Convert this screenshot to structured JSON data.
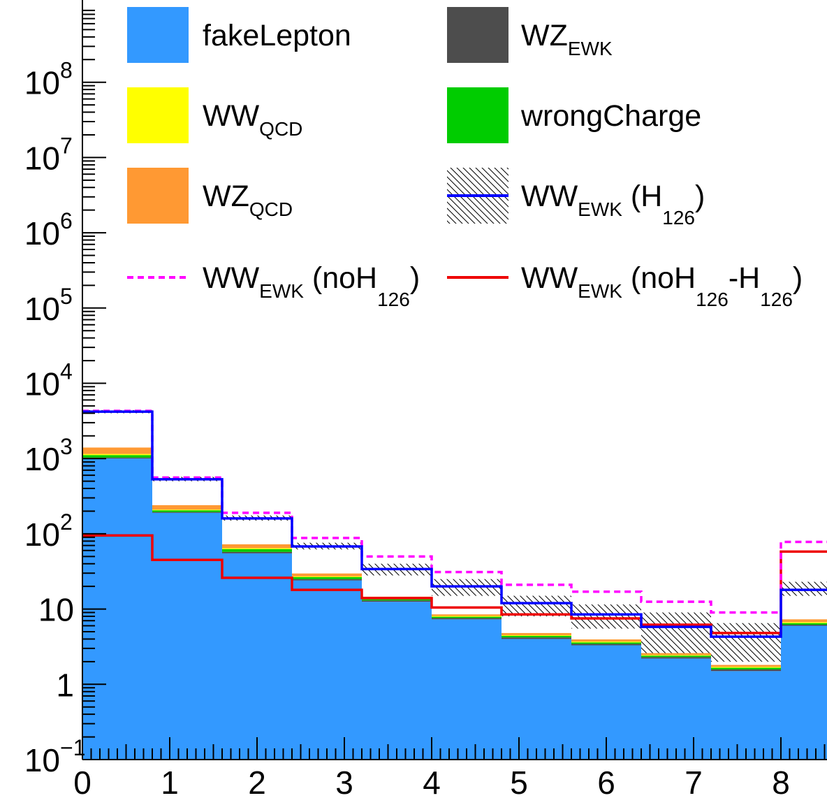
{
  "chart_data": {
    "type": "bar",
    "title": "",
    "xlabel": "",
    "ylabel": "",
    "y_scale": "log",
    "ylim": [
      0.1,
      1000000000
    ],
    "xlim": [
      0,
      8.5
    ],
    "bin_edges": [
      0,
      0.8,
      1.6,
      2.4,
      3.2,
      4.0,
      4.8,
      5.6,
      6.4,
      7.2,
      8.0,
      8.8
    ],
    "x_tick_labels": [
      "0",
      "1",
      "2",
      "3",
      "4",
      "5",
      "6",
      "7",
      "8"
    ],
    "y_tick_labels": [
      {
        "base": "10",
        "exp": "−1"
      },
      {
        "base": "1",
        "exp": ""
      },
      {
        "base": "10",
        "exp": ""
      },
      {
        "base": "10",
        "exp": "2"
      },
      {
        "base": "10",
        "exp": "3"
      },
      {
        "base": "10",
        "exp": "4"
      },
      {
        "base": "10",
        "exp": "5"
      },
      {
        "base": "10",
        "exp": "6"
      },
      {
        "base": "10",
        "exp": "7"
      },
      {
        "base": "10",
        "exp": "8"
      }
    ],
    "stack": [
      {
        "name": "fakeLepton",
        "color": "#3399ff",
        "values": [
          1000,
          190,
          55,
          24,
          12.5,
          7.3,
          4.0,
          3.3,
          2.2,
          1.5,
          6.0
        ]
      },
      {
        "name": "WZ_EWK",
        "color": "#4d4d4d",
        "values": [
          30,
          5,
          2.5,
          1.0,
          0.5,
          0.3,
          0.2,
          0.15,
          0.1,
          0.08,
          0.2
        ]
      },
      {
        "name": "wrongCharge",
        "color": "#00cc00",
        "values": [
          80,
          10,
          5,
          1.5,
          0.5,
          0.3,
          0.2,
          0.15,
          0.1,
          0.08,
          0.3
        ]
      },
      {
        "name": "WW_QCD",
        "color": "#ffff00",
        "values": [
          40,
          5,
          2,
          0.7,
          0.3,
          0.2,
          0.1,
          0.1,
          0.05,
          0.05,
          0.2
        ]
      },
      {
        "name": "WZ_QCD",
        "color": "#ff9933",
        "values": [
          250,
          30,
          8,
          2.5,
          0.8,
          0.4,
          0.3,
          0.25,
          0.15,
          0.1,
          0.6
        ]
      }
    ],
    "lines": [
      {
        "name": "WW_EWK (H_126)",
        "color": "#0000ff",
        "style": "solid",
        "values": [
          4200,
          530,
          160,
          68,
          34,
          20,
          12,
          8.5,
          5.8,
          4.3,
          18
        ]
      },
      {
        "name": "WW_EWK (noH_126)",
        "color": "#ff00ff",
        "style": "dashed",
        "values": [
          4300,
          560,
          190,
          88,
          50,
          31,
          21,
          17,
          12.5,
          9.0,
          78
        ]
      },
      {
        "name": "WW_EWK (noH_126-H_126)",
        "color": "#ee0000",
        "style": "solid",
        "values": [
          95,
          45,
          26,
          18,
          14,
          10.5,
          8.5,
          7.5,
          6.2,
          4.8,
          58
        ]
      }
    ],
    "uncertainty_band": {
      "name": "WW_EWK (H_126)",
      "fill": "hatched",
      "down": [
        4000,
        500,
        150,
        62,
        28,
        15,
        8.0,
        5.5,
        2.6,
        2.0,
        15
      ],
      "up": [
        4400,
        570,
        175,
        76,
        40,
        25,
        15,
        11.5,
        9.0,
        6.5,
        23
      ]
    },
    "legend": {
      "placement": "top",
      "entries": [
        {
          "key": "fakeLepton",
          "symbol": "fill",
          "color": "#3399ff",
          "text": "fakeLepton",
          "sub": "",
          "mid": "",
          "sub2": "",
          "tail": ""
        },
        {
          "key": "WZ_EWK",
          "symbol": "fill",
          "color": "#4d4d4d",
          "text": "WZ",
          "sub": "EWK",
          "mid": "",
          "sub2": "",
          "tail": ""
        },
        {
          "key": "WW_QCD",
          "symbol": "fill",
          "color": "#ffff00",
          "text": "WW",
          "sub": "QCD",
          "mid": "",
          "sub2": "",
          "tail": ""
        },
        {
          "key": "wrongCharge",
          "symbol": "fill",
          "color": "#00cc00",
          "text": "wrongCharge",
          "sub": "",
          "mid": "",
          "sub2": "",
          "tail": ""
        },
        {
          "key": "WZ_QCD",
          "symbol": "fill",
          "color": "#ff9933",
          "text": "WZ",
          "sub": "QCD",
          "mid": "",
          "sub2": "",
          "tail": ""
        },
        {
          "key": "WW_EWK_H126",
          "symbol": "hatch-line",
          "color": "#0000ff",
          "text": "WW",
          "sub": "EWK",
          "mid": " (H",
          "sub2": "126",
          "tail": ")"
        },
        {
          "key": "WW_EWK_noH126",
          "symbol": "dashed-line",
          "color": "#ff00ff",
          "text": "WW",
          "sub": "EWK",
          "mid": " (noH",
          "sub2": "126",
          "tail": ")"
        },
        {
          "key": "WW_EWK_diff",
          "symbol": "line",
          "color": "#ee0000",
          "text": "WW",
          "sub": "EWK",
          "mid": " (noH",
          "sub2": "126",
          "tail": "-H"
        }
      ],
      "extra_sub": "126",
      "extra_tail": ")"
    }
  }
}
